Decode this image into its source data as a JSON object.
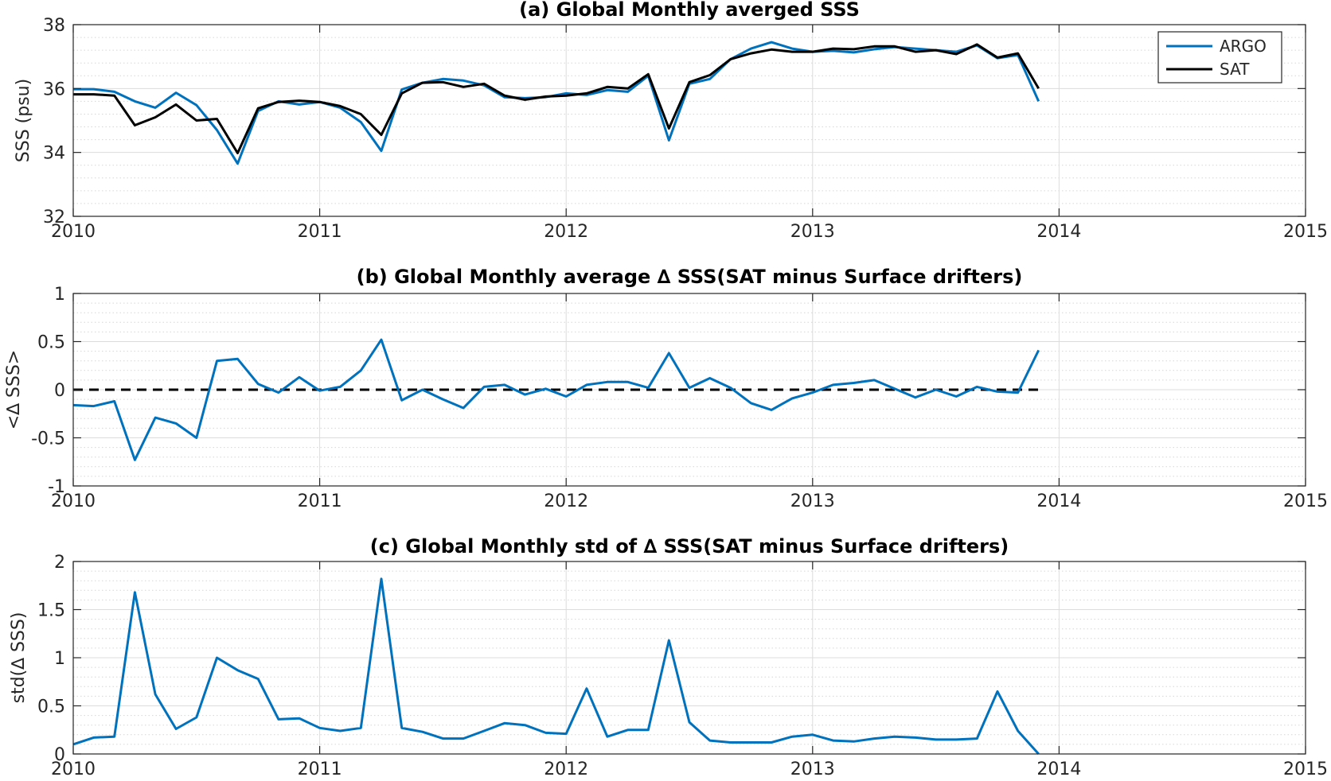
{
  "chart_data": [
    {
      "type": "line",
      "title": "(a) Global Monthly averged SSS",
      "xlabel": "",
      "ylabel": "SSS (psu)",
      "xlim": [
        2010,
        2015
      ],
      "ylim": [
        32,
        38
      ],
      "xticks": [
        2010,
        2011,
        2012,
        2013,
        2014,
        2015
      ],
      "yticks": [
        32,
        34,
        36,
        38
      ],
      "grid": true,
      "legend": "top-right",
      "x": [
        2010.0,
        2010.083,
        2010.167,
        2010.25,
        2010.333,
        2010.417,
        2010.5,
        2010.583,
        2010.667,
        2010.75,
        2010.833,
        2010.917,
        2011.0,
        2011.083,
        2011.167,
        2011.25,
        2011.333,
        2011.417,
        2011.5,
        2011.583,
        2011.667,
        2011.75,
        2011.833,
        2011.917,
        2012.0,
        2012.083,
        2012.167,
        2012.25,
        2012.333,
        2012.417,
        2012.5,
        2012.583,
        2012.667,
        2012.75,
        2012.833,
        2012.917,
        2013.0,
        2013.083,
        2013.167,
        2013.25,
        2013.333,
        2013.417,
        2013.5,
        2013.583,
        2013.667,
        2013.75,
        2013.833,
        2013.917
      ],
      "series": [
        {
          "name": "ARGO",
          "color": "#0072bd",
          "values": [
            35.98,
            35.98,
            35.9,
            35.6,
            35.4,
            35.87,
            35.48,
            34.7,
            33.65,
            35.3,
            35.6,
            35.5,
            35.58,
            35.4,
            34.95,
            34.05,
            35.97,
            36.18,
            36.3,
            36.25,
            36.1,
            35.73,
            35.7,
            35.73,
            35.85,
            35.8,
            35.95,
            35.9,
            36.4,
            34.38,
            36.15,
            36.3,
            36.92,
            37.25,
            37.45,
            37.25,
            37.15,
            37.18,
            37.13,
            37.23,
            37.3,
            37.25,
            37.2,
            37.15,
            37.35,
            36.95,
            37.05,
            35.6
          ]
        },
        {
          "name": "SAT",
          "color": "#000000",
          "values": [
            35.82,
            35.82,
            35.78,
            34.85,
            35.1,
            35.5,
            35.0,
            35.05,
            33.98,
            35.38,
            35.58,
            35.62,
            35.58,
            35.45,
            35.2,
            34.55,
            35.85,
            36.18,
            36.2,
            36.05,
            36.15,
            35.78,
            35.65,
            35.75,
            35.78,
            35.85,
            36.05,
            36.0,
            36.45,
            34.75,
            36.2,
            36.42,
            36.92,
            37.1,
            37.22,
            37.15,
            37.15,
            37.25,
            37.23,
            37.32,
            37.32,
            37.15,
            37.2,
            37.08,
            37.38,
            36.97,
            37.1,
            36.0
          ]
        }
      ]
    },
    {
      "type": "line",
      "title": "(b) Global Monthly average ∆ SSS(SAT minus Surface drifters)",
      "xlabel": "",
      "ylabel": "<∆ SSS>",
      "xlim": [
        2010,
        2015
      ],
      "ylim": [
        -1,
        1
      ],
      "xticks": [
        2010,
        2011,
        2012,
        2013,
        2014,
        2015
      ],
      "yticks": [
        -1,
        -0.5,
        0,
        0.5,
        1
      ],
      "grid": true,
      "zero_line": {
        "y": 0,
        "x_range": [
          2010,
          2013.917
        ],
        "style": "dashed",
        "color": "#000000"
      },
      "x": [
        2010.0,
        2010.083,
        2010.167,
        2010.25,
        2010.333,
        2010.417,
        2010.5,
        2010.583,
        2010.667,
        2010.75,
        2010.833,
        2010.917,
        2011.0,
        2011.083,
        2011.167,
        2011.25,
        2011.333,
        2011.417,
        2011.5,
        2011.583,
        2011.667,
        2011.75,
        2011.833,
        2011.917,
        2012.0,
        2012.083,
        2012.167,
        2012.25,
        2012.333,
        2012.417,
        2012.5,
        2012.583,
        2012.667,
        2012.75,
        2012.833,
        2012.917,
        2013.0,
        2013.083,
        2013.167,
        2013.25,
        2013.333,
        2013.417,
        2013.5,
        2013.583,
        2013.667,
        2013.75,
        2013.833,
        2013.917
      ],
      "series": [
        {
          "color": "#0072bd",
          "values": [
            -0.16,
            -0.17,
            -0.12,
            -0.73,
            -0.29,
            -0.35,
            -0.5,
            0.3,
            0.32,
            0.06,
            -0.03,
            0.13,
            -0.01,
            0.03,
            0.2,
            0.52,
            -0.11,
            0.0,
            -0.1,
            -0.19,
            0.03,
            0.05,
            -0.05,
            0.01,
            -0.07,
            0.05,
            0.08,
            0.08,
            0.02,
            0.38,
            0.02,
            0.12,
            0.02,
            -0.14,
            -0.21,
            -0.09,
            -0.03,
            0.05,
            0.07,
            0.1,
            0.01,
            -0.08,
            0.0,
            -0.07,
            0.03,
            -0.02,
            -0.03,
            0.41
          ]
        }
      ]
    },
    {
      "type": "line",
      "title": "(c) Global Monthly std of ∆ SSS(SAT minus Surface drifters)",
      "xlabel": "",
      "ylabel": "std(∆ SSS)",
      "xlim": [
        2010,
        2015
      ],
      "ylim": [
        0,
        2
      ],
      "xticks": [
        2010,
        2011,
        2012,
        2013,
        2014,
        2015
      ],
      "yticks": [
        0,
        0.5,
        1,
        1.5,
        2
      ],
      "grid": true,
      "x": [
        2010.0,
        2010.083,
        2010.167,
        2010.25,
        2010.333,
        2010.417,
        2010.5,
        2010.583,
        2010.667,
        2010.75,
        2010.833,
        2010.917,
        2011.0,
        2011.083,
        2011.167,
        2011.25,
        2011.333,
        2011.417,
        2011.5,
        2011.583,
        2011.667,
        2011.75,
        2011.833,
        2011.917,
        2012.0,
        2012.083,
        2012.167,
        2012.25,
        2012.333,
        2012.417,
        2012.5,
        2012.583,
        2012.667,
        2012.75,
        2012.833,
        2012.917,
        2013.0,
        2013.083,
        2013.167,
        2013.25,
        2013.333,
        2013.417,
        2013.5,
        2013.583,
        2013.667,
        2013.75,
        2013.833,
        2013.917
      ],
      "series": [
        {
          "color": "#0072bd",
          "values": [
            0.1,
            0.17,
            0.18,
            1.68,
            0.62,
            0.26,
            0.38,
            1.0,
            0.87,
            0.78,
            0.36,
            0.37,
            0.27,
            0.24,
            0.27,
            1.82,
            0.27,
            0.23,
            0.16,
            0.16,
            0.24,
            0.32,
            0.3,
            0.22,
            0.21,
            0.68,
            0.18,
            0.25,
            0.25,
            1.18,
            0.33,
            0.14,
            0.12,
            0.12,
            0.12,
            0.18,
            0.2,
            0.14,
            0.13,
            0.16,
            0.18,
            0.17,
            0.15,
            0.15,
            0.16,
            0.65,
            0.24,
            0.0
          ]
        }
      ]
    }
  ]
}
